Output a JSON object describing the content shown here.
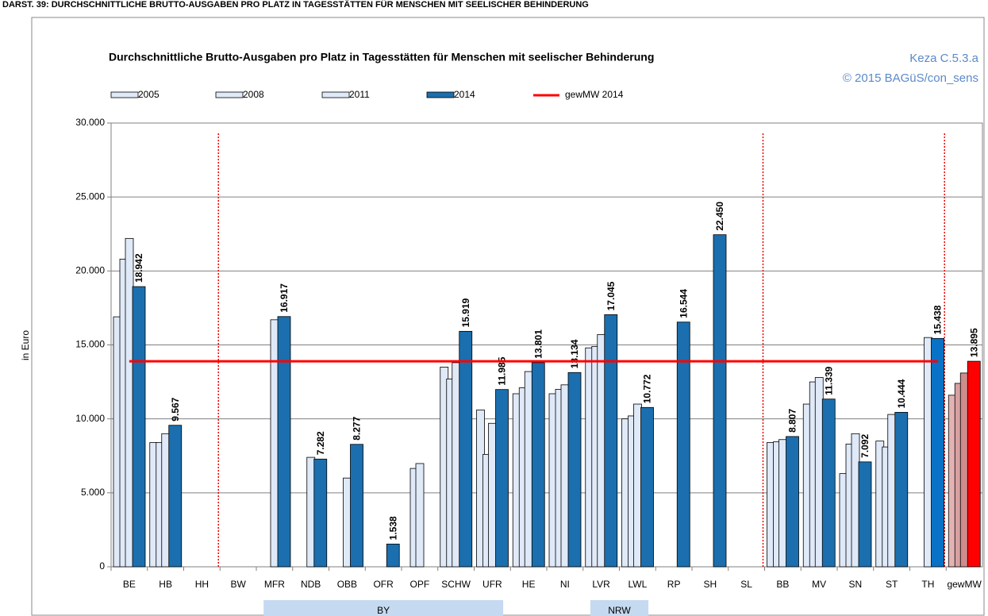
{
  "caption": "DARST. 39: DURCHSCHNITTLICHE BRUTTO-AUSGABEN PRO PLATZ IN TAGESSTÄTTEN FÜR MENSCHEN MIT SEELISCHER BEHINDERUNG",
  "chart_data": {
    "type": "bar",
    "title": "Durchschnittliche Brutto-Ausgaben pro Platz in Tagesstätten für Menschen mit seelischer  Behinderung",
    "source": "Keza C.5.3.a",
    "copyright": "© 2015 BAGüS/con_sens",
    "y_label": "in Euro",
    "categories": [
      "BE",
      "HB",
      "HH",
      "BW",
      "MFR",
      "NDB",
      "OBB",
      "OFR",
      "OPF",
      "SCHW",
      "UFR",
      "HE",
      "NI",
      "LVR",
      "LWL",
      "RP",
      "SH",
      "SL",
      "BB",
      "MV",
      "SN",
      "ST",
      "TH",
      "gewMW"
    ],
    "groups": [
      {
        "label": "BY"
      },
      {
        "label": "NRW"
      }
    ],
    "series": [
      {
        "name": "2005",
        "color": "#dfe9f8",
        "point_colors": {
          "23": "#e3b3b3"
        },
        "values": [
          16900,
          8400,
          null,
          null,
          null,
          null,
          null,
          null,
          null,
          13500,
          10600,
          11700,
          11700,
          14800,
          10000,
          null,
          null,
          null,
          8400,
          11000,
          6300,
          8500,
          null,
          11600
        ]
      },
      {
        "name": "2008",
        "color": "#dfe9f8",
        "point_colors": {
          "23": "#d7a1a1"
        },
        "values": [
          20800,
          8400,
          null,
          null,
          null,
          null,
          null,
          null,
          6650,
          12700,
          7600,
          12100,
          12000,
          14900,
          10200,
          null,
          null,
          null,
          8450,
          12500,
          8300,
          8100,
          null,
          12400
        ]
      },
      {
        "name": "2011",
        "color": "#dfe9f8",
        "point_colors": {
          "23": "#cf8c8c"
        },
        "values": [
          22200,
          9000,
          null,
          null,
          16700,
          7400,
          6000,
          null,
          6980,
          13800,
          9700,
          13200,
          12300,
          15700,
          11000,
          null,
          null,
          null,
          8600,
          12800,
          9000,
          10300,
          15500,
          13100
        ]
      },
      {
        "name": "2014",
        "color": "#1b6fae",
        "point_colors": {
          "22": "#0a72c6",
          "23": "#ff0000"
        },
        "values": [
          18942,
          9567,
          null,
          null,
          16917,
          7282,
          8277,
          1538,
          null,
          15919,
          11985,
          13801,
          13134,
          17045,
          10772,
          16544,
          22450,
          null,
          8807,
          11339,
          7092,
          10444,
          15438,
          13895
        ],
        "value_labels": [
          "18.942",
          "9.567",
          null,
          null,
          "16.917",
          "7.282",
          "8.277",
          "1.538",
          null,
          "15.919",
          "11.985",
          "13.801",
          "13.134",
          "17.045",
          "10.772",
          "16.544",
          "22.450",
          null,
          "8.807",
          "11.339",
          "7.092",
          "10.444",
          "15.438",
          "13.895"
        ]
      }
    ],
    "reference_line": {
      "name": "gewMW 2014",
      "value": 13895,
      "color": "#ff0000"
    },
    "ylim": [
      0,
      30000
    ],
    "yticks": [
      0,
      {
        "value": 5000,
        "label": "5.000"
      },
      {
        "value": 10000,
        "label": "10.000"
      },
      {
        "value": 15000,
        "label": "15.000"
      },
      {
        "value": 20000,
        "label": "20.000"
      },
      {
        "value": 25000,
        "label": "25.000"
      },
      {
        "value": 30000,
        "label": "30.000"
      }
    ],
    "grid": true
  }
}
